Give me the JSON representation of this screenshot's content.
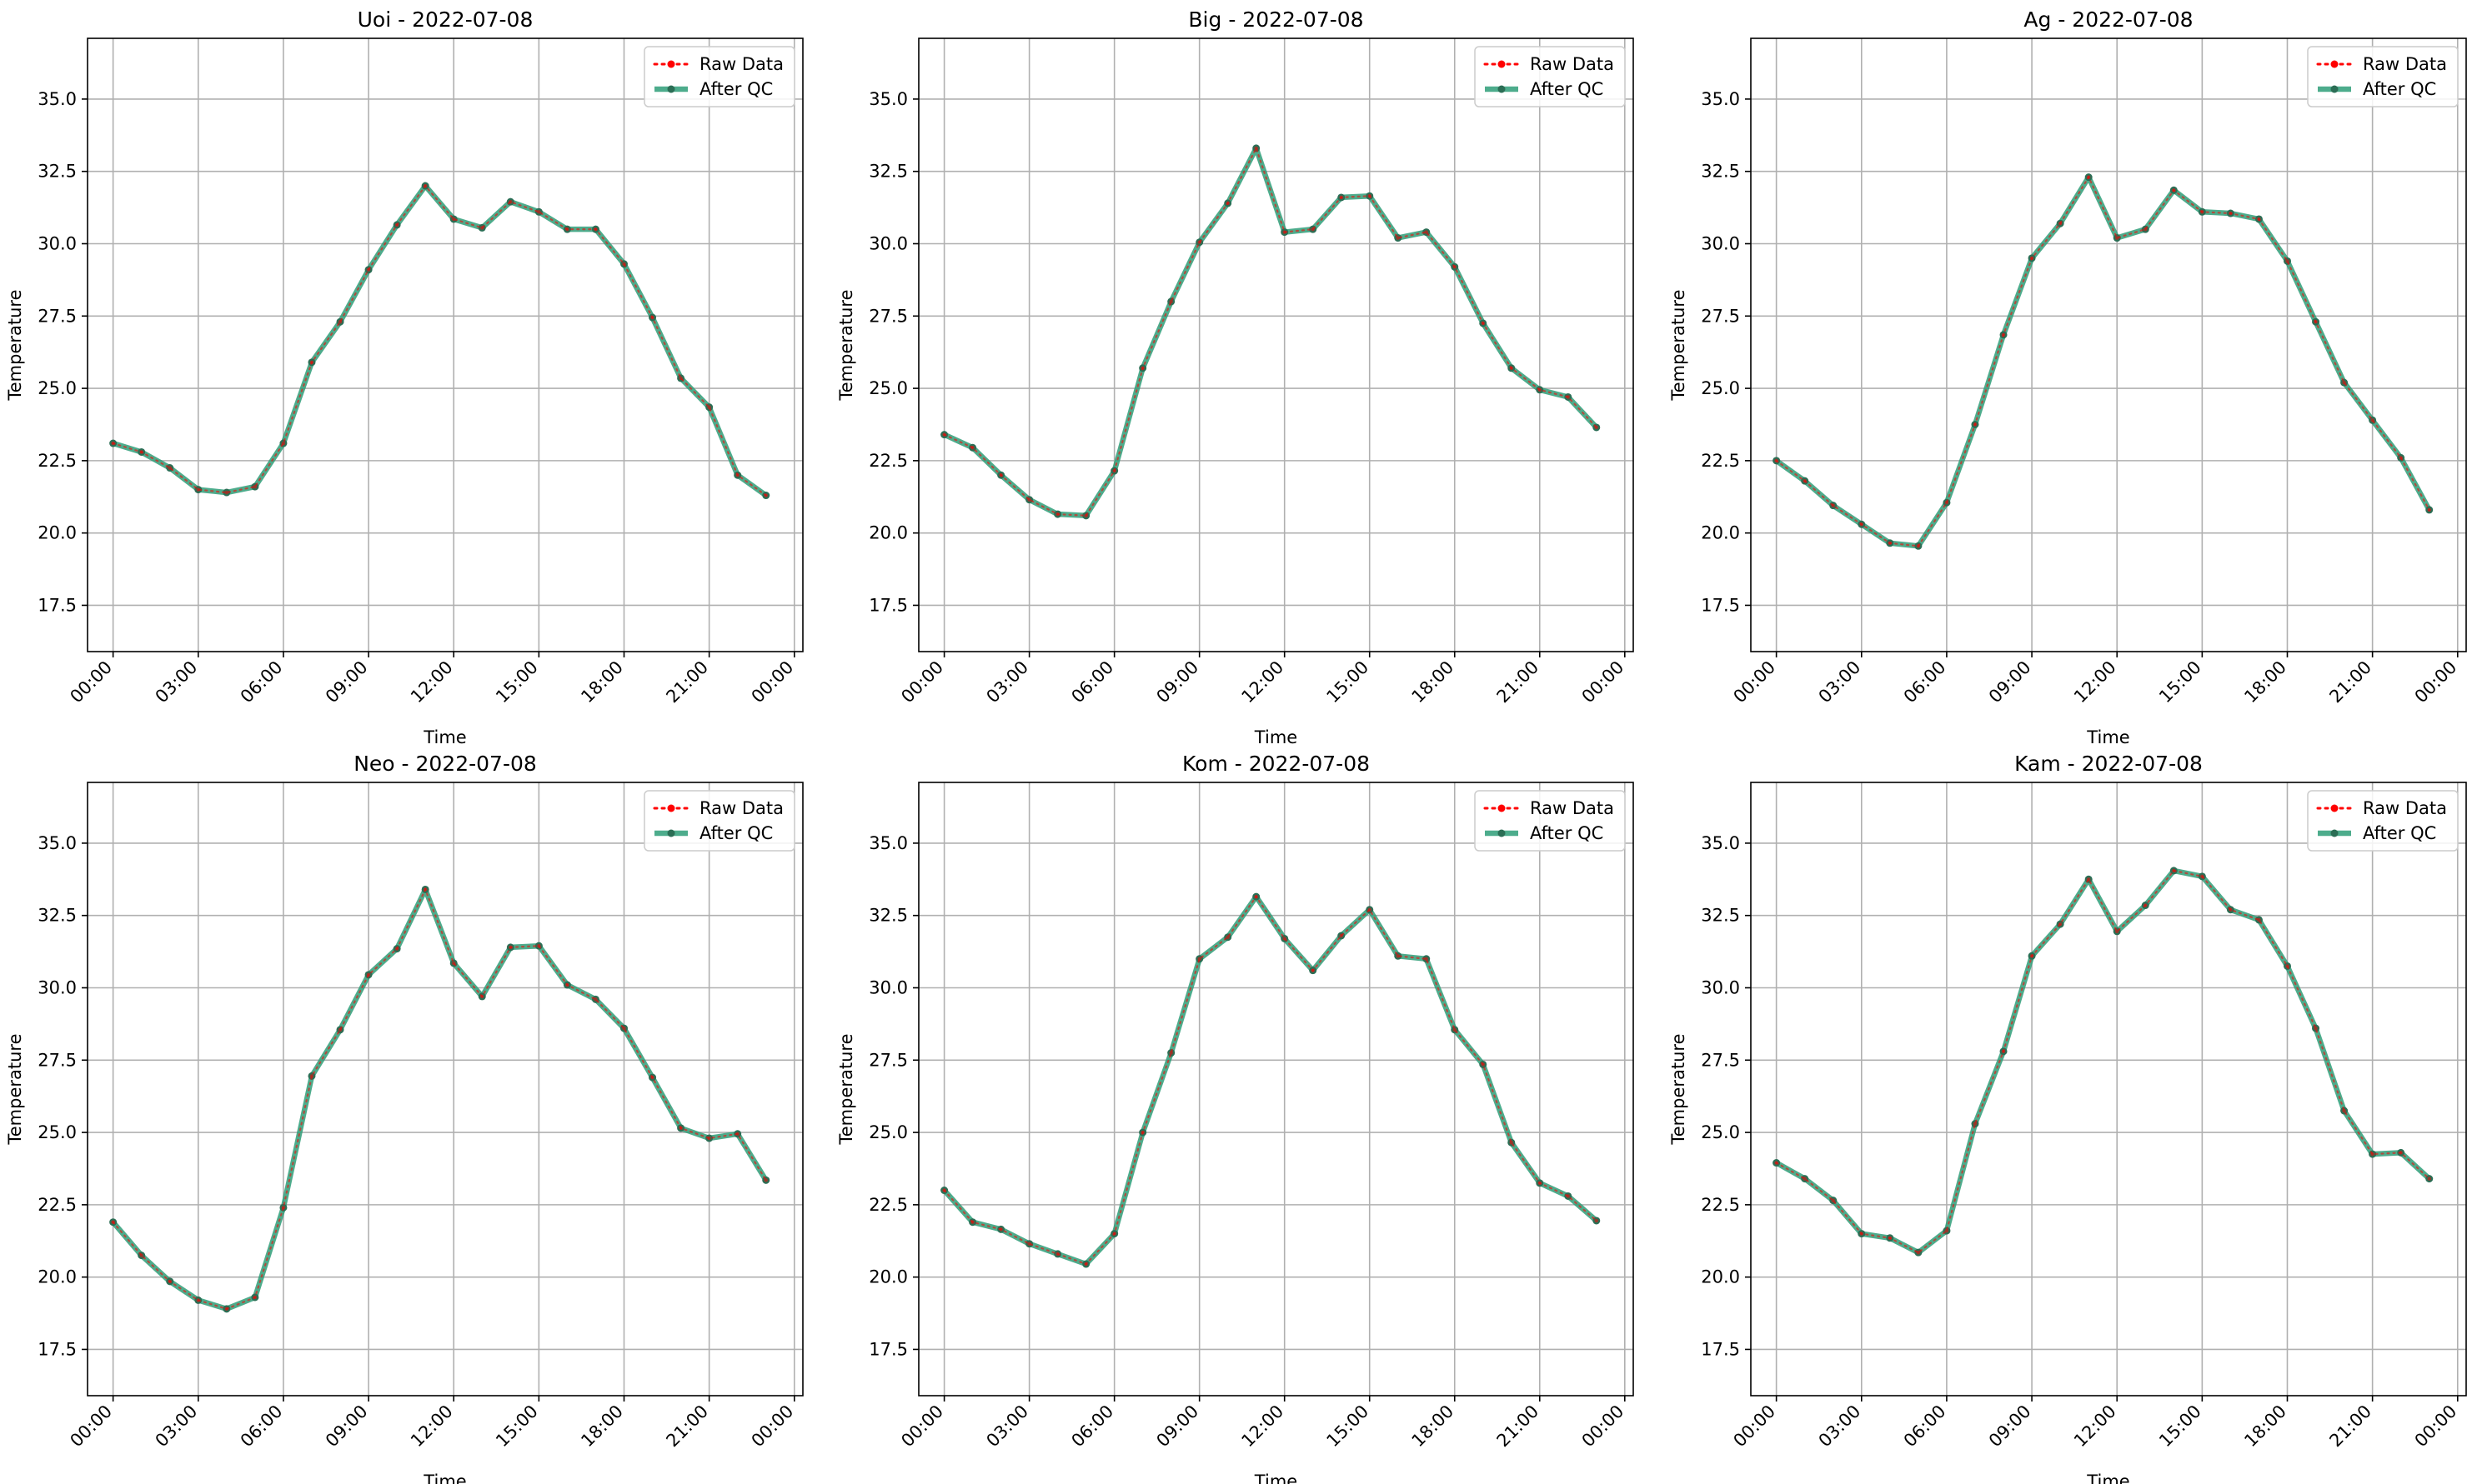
{
  "colors": {
    "raw": "#ff0000",
    "qc": "#2e9d78",
    "qc_marker": "#2b6e55",
    "grid": "#b0b0b0",
    "axis": "#000000",
    "background": "#ffffff"
  },
  "legend": {
    "raw_label": "Raw Data",
    "qc_label": "After QC"
  },
  "chart_data": [
    {
      "type": "line",
      "title": "Uoi - 2022-07-08",
      "xlabel": "Time",
      "ylabel": "Temperature",
      "x": [
        "00:00",
        "01:00",
        "02:00",
        "03:00",
        "04:00",
        "05:00",
        "06:00",
        "07:00",
        "08:00",
        "09:00",
        "10:00",
        "11:00",
        "12:00",
        "13:00",
        "14:00",
        "15:00",
        "16:00",
        "17:00",
        "18:00",
        "19:00",
        "20:00",
        "21:00",
        "22:00",
        "23:00"
      ],
      "xticks": [
        "00:00",
        "03:00",
        "06:00",
        "09:00",
        "12:00",
        "15:00",
        "18:00",
        "21:00",
        "00:00"
      ],
      "xlim": [
        -0.9,
        24.3
      ],
      "ylim": [
        15.9,
        37.1
      ],
      "yticks": [
        "17.5",
        "20.0",
        "22.5",
        "25.0",
        "27.5",
        "30.0",
        "32.5",
        "35.0"
      ],
      "grid": true,
      "legend_position": "top-right",
      "series": [
        {
          "name": "Raw Data",
          "style": "dotted",
          "values": [
            23.1,
            22.8,
            22.25,
            21.5,
            21.4,
            21.6,
            23.1,
            25.9,
            27.3,
            29.1,
            30.65,
            32.0,
            30.85,
            30.55,
            31.45,
            31.1,
            30.5,
            30.5,
            29.3,
            27.45,
            25.35,
            24.35,
            22.0,
            21.3
          ]
        },
        {
          "name": "After QC",
          "style": "solid",
          "values": [
            23.1,
            22.8,
            22.25,
            21.5,
            21.4,
            21.6,
            23.1,
            25.9,
            27.3,
            29.1,
            30.65,
            32.0,
            30.85,
            30.55,
            31.45,
            31.1,
            30.5,
            30.5,
            29.3,
            27.45,
            25.35,
            24.35,
            22.0,
            21.3
          ]
        }
      ]
    },
    {
      "type": "line",
      "title": "Big - 2022-07-08",
      "xlabel": "Time",
      "ylabel": "Temperature",
      "x": [
        "00:00",
        "01:00",
        "02:00",
        "03:00",
        "04:00",
        "05:00",
        "06:00",
        "07:00",
        "08:00",
        "09:00",
        "10:00",
        "11:00",
        "12:00",
        "13:00",
        "14:00",
        "15:00",
        "16:00",
        "17:00",
        "18:00",
        "19:00",
        "20:00",
        "21:00",
        "22:00",
        "23:00"
      ],
      "xticks": [
        "00:00",
        "03:00",
        "06:00",
        "09:00",
        "12:00",
        "15:00",
        "18:00",
        "21:00",
        "00:00"
      ],
      "xlim": [
        -0.9,
        24.3
      ],
      "ylim": [
        15.9,
        37.1
      ],
      "yticks": [
        "17.5",
        "20.0",
        "22.5",
        "25.0",
        "27.5",
        "30.0",
        "32.5",
        "35.0"
      ],
      "grid": true,
      "legend_position": "top-right",
      "series": [
        {
          "name": "Raw Data",
          "style": "dotted",
          "values": [
            23.4,
            22.95,
            22.0,
            21.15,
            20.65,
            20.6,
            22.15,
            25.7,
            28.0,
            30.05,
            31.4,
            33.3,
            30.4,
            30.5,
            31.6,
            31.65,
            30.2,
            30.4,
            29.2,
            27.25,
            25.7,
            24.95,
            24.7,
            23.65
          ]
        },
        {
          "name": "After QC",
          "style": "solid",
          "values": [
            23.4,
            22.95,
            22.0,
            21.15,
            20.65,
            20.6,
            22.15,
            25.7,
            28.0,
            30.05,
            31.4,
            33.3,
            30.4,
            30.5,
            31.6,
            31.65,
            30.2,
            30.4,
            29.2,
            27.25,
            25.7,
            24.95,
            24.7,
            23.65
          ]
        }
      ]
    },
    {
      "type": "line",
      "title": "Ag - 2022-07-08",
      "xlabel": "Time",
      "ylabel": "Temperature",
      "x": [
        "00:00",
        "01:00",
        "02:00",
        "03:00",
        "04:00",
        "05:00",
        "06:00",
        "07:00",
        "08:00",
        "09:00",
        "10:00",
        "11:00",
        "12:00",
        "13:00",
        "14:00",
        "15:00",
        "16:00",
        "17:00",
        "18:00",
        "19:00",
        "20:00",
        "21:00",
        "22:00",
        "23:00"
      ],
      "xticks": [
        "00:00",
        "03:00",
        "06:00",
        "09:00",
        "12:00",
        "15:00",
        "18:00",
        "21:00",
        "00:00"
      ],
      "xlim": [
        -0.9,
        24.3
      ],
      "ylim": [
        15.9,
        37.1
      ],
      "yticks": [
        "17.5",
        "20.0",
        "22.5",
        "25.0",
        "27.5",
        "30.0",
        "32.5",
        "35.0"
      ],
      "grid": true,
      "legend_position": "top-right",
      "series": [
        {
          "name": "Raw Data",
          "style": "dotted",
          "values": [
            22.5,
            21.8,
            20.95,
            20.3,
            19.65,
            19.55,
            21.05,
            23.75,
            26.85,
            29.5,
            30.7,
            32.3,
            30.2,
            30.5,
            31.85,
            31.1,
            31.05,
            30.85,
            29.4,
            27.3,
            25.2,
            23.9,
            22.6,
            20.8
          ]
        },
        {
          "name": "After QC",
          "style": "solid",
          "values": [
            22.5,
            21.8,
            20.95,
            20.3,
            19.65,
            19.55,
            21.05,
            23.75,
            26.85,
            29.5,
            30.7,
            32.3,
            30.2,
            30.5,
            31.85,
            31.1,
            31.05,
            30.85,
            29.4,
            27.3,
            25.2,
            23.9,
            22.6,
            20.8
          ]
        }
      ]
    },
    {
      "type": "line",
      "title": "Neo - 2022-07-08",
      "xlabel": "Time",
      "ylabel": "Temperature",
      "x": [
        "00:00",
        "01:00",
        "02:00",
        "03:00",
        "04:00",
        "05:00",
        "06:00",
        "07:00",
        "08:00",
        "09:00",
        "10:00",
        "11:00",
        "12:00",
        "13:00",
        "14:00",
        "15:00",
        "16:00",
        "17:00",
        "18:00",
        "19:00",
        "20:00",
        "21:00",
        "22:00",
        "23:00"
      ],
      "xticks": [
        "00:00",
        "03:00",
        "06:00",
        "09:00",
        "12:00",
        "15:00",
        "18:00",
        "21:00",
        "00:00"
      ],
      "xlim": [
        -0.9,
        24.3
      ],
      "ylim": [
        15.9,
        37.1
      ],
      "yticks": [
        "17.5",
        "20.0",
        "22.5",
        "25.0",
        "27.5",
        "30.0",
        "32.5",
        "35.0"
      ],
      "grid": true,
      "legend_position": "top-right",
      "series": [
        {
          "name": "Raw Data",
          "style": "dotted",
          "values": [
            21.9,
            20.75,
            19.85,
            19.2,
            18.9,
            19.3,
            22.4,
            26.95,
            28.55,
            30.45,
            31.35,
            33.4,
            30.85,
            29.7,
            31.4,
            31.45,
            30.1,
            29.6,
            28.6,
            26.9,
            25.15,
            24.8,
            24.95,
            23.35
          ]
        },
        {
          "name": "After QC",
          "style": "solid",
          "values": [
            21.9,
            20.75,
            19.85,
            19.2,
            18.9,
            19.3,
            22.4,
            26.95,
            28.55,
            30.45,
            31.35,
            33.4,
            30.85,
            29.7,
            31.4,
            31.45,
            30.1,
            29.6,
            28.6,
            26.9,
            25.15,
            24.8,
            24.95,
            23.35
          ]
        }
      ]
    },
    {
      "type": "line",
      "title": "Kom - 2022-07-08",
      "xlabel": "Time",
      "ylabel": "Temperature",
      "x": [
        "00:00",
        "01:00",
        "02:00",
        "03:00",
        "04:00",
        "05:00",
        "06:00",
        "07:00",
        "08:00",
        "09:00",
        "10:00",
        "11:00",
        "12:00",
        "13:00",
        "14:00",
        "15:00",
        "16:00",
        "17:00",
        "18:00",
        "19:00",
        "20:00",
        "21:00",
        "22:00",
        "23:00"
      ],
      "xticks": [
        "00:00",
        "03:00",
        "06:00",
        "09:00",
        "12:00",
        "15:00",
        "18:00",
        "21:00",
        "00:00"
      ],
      "xlim": [
        -0.9,
        24.3
      ],
      "ylim": [
        15.9,
        37.1
      ],
      "yticks": [
        "17.5",
        "20.0",
        "22.5",
        "25.0",
        "27.5",
        "30.0",
        "32.5",
        "35.0"
      ],
      "grid": true,
      "legend_position": "top-right",
      "series": [
        {
          "name": "Raw Data",
          "style": "dotted",
          "values": [
            23.0,
            21.9,
            21.65,
            21.15,
            20.8,
            20.45,
            21.5,
            25.0,
            27.75,
            31.0,
            31.75,
            33.15,
            31.7,
            30.6,
            31.8,
            32.7,
            31.1,
            31.0,
            28.55,
            27.35,
            24.65,
            23.25,
            22.8,
            21.95
          ]
        },
        {
          "name": "After QC",
          "style": "solid",
          "values": [
            23.0,
            21.9,
            21.65,
            21.15,
            20.8,
            20.45,
            21.5,
            25.0,
            27.75,
            31.0,
            31.75,
            33.15,
            31.7,
            30.6,
            31.8,
            32.7,
            31.1,
            31.0,
            28.55,
            27.35,
            24.65,
            23.25,
            22.8,
            21.95
          ]
        }
      ]
    },
    {
      "type": "line",
      "title": "Kam - 2022-07-08",
      "xlabel": "Time",
      "ylabel": "Temperature",
      "x": [
        "00:00",
        "01:00",
        "02:00",
        "03:00",
        "04:00",
        "05:00",
        "06:00",
        "07:00",
        "08:00",
        "09:00",
        "10:00",
        "11:00",
        "12:00",
        "13:00",
        "14:00",
        "15:00",
        "16:00",
        "17:00",
        "18:00",
        "19:00",
        "20:00",
        "21:00",
        "22:00",
        "23:00"
      ],
      "xticks": [
        "00:00",
        "03:00",
        "06:00",
        "09:00",
        "12:00",
        "15:00",
        "18:00",
        "21:00",
        "00:00"
      ],
      "xlim": [
        -0.9,
        24.3
      ],
      "ylim": [
        15.9,
        37.1
      ],
      "yticks": [
        "17.5",
        "20.0",
        "22.5",
        "25.0",
        "27.5",
        "30.0",
        "32.5",
        "35.0"
      ],
      "grid": true,
      "legend_position": "top-right",
      "series": [
        {
          "name": "Raw Data",
          "style": "dotted",
          "values": [
            23.95,
            23.4,
            22.65,
            21.5,
            21.35,
            20.85,
            21.6,
            25.3,
            27.8,
            31.1,
            32.2,
            33.75,
            31.95,
            32.85,
            34.05,
            33.85,
            32.7,
            32.35,
            30.75,
            28.6,
            25.75,
            24.25,
            24.3,
            23.4
          ]
        },
        {
          "name": "After QC",
          "style": "solid",
          "values": [
            23.95,
            23.4,
            22.65,
            21.5,
            21.35,
            20.85,
            21.6,
            25.3,
            27.8,
            31.1,
            32.2,
            33.75,
            31.95,
            32.85,
            34.05,
            33.85,
            32.7,
            32.35,
            30.75,
            28.6,
            25.75,
            24.25,
            24.3,
            23.4
          ]
        }
      ]
    }
  ]
}
